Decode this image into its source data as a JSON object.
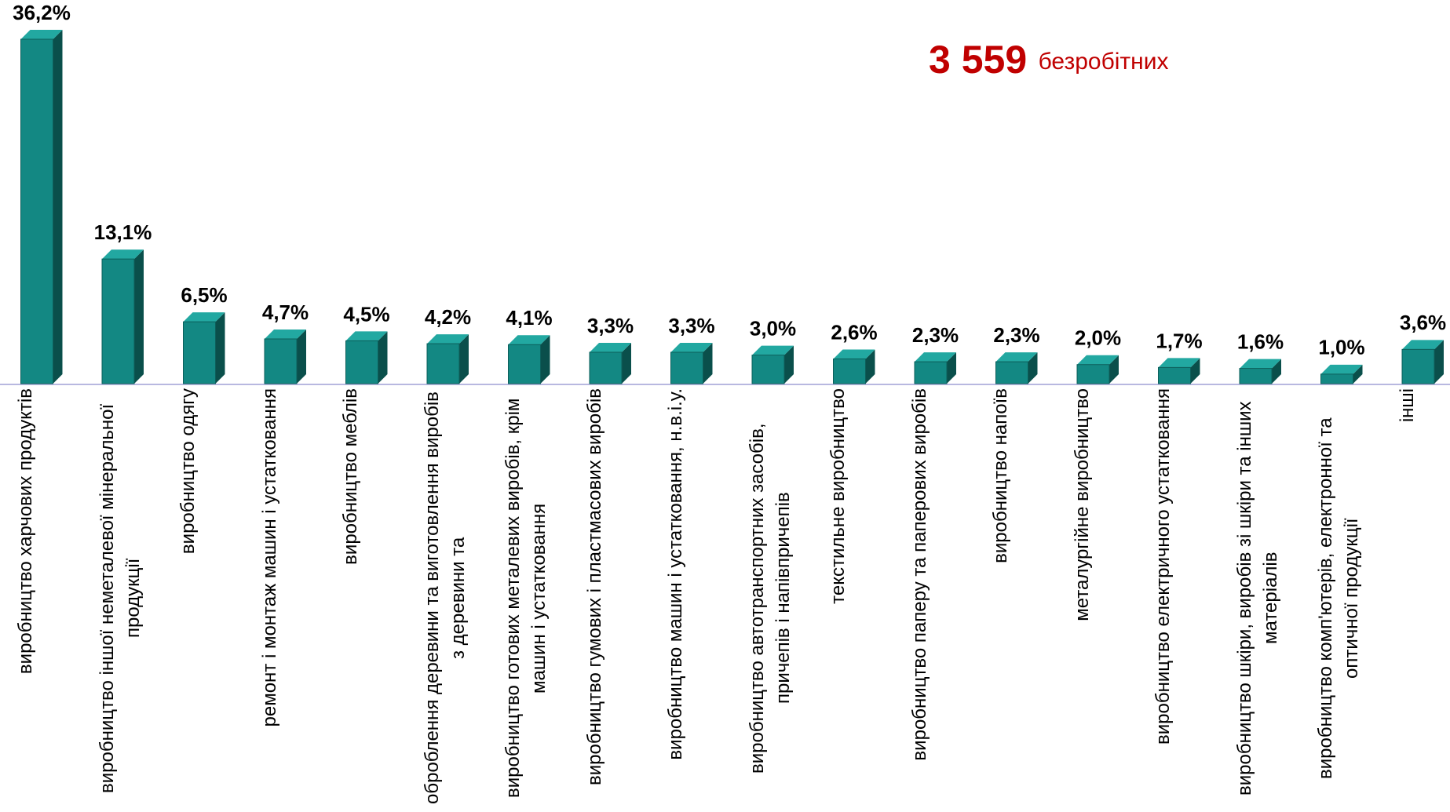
{
  "chart_data": {
    "type": "bar3d",
    "annotation": {
      "value": "3 559",
      "text": "безробітних"
    },
    "color": "#138883",
    "categories": [
      "виробництво харчових продуктів",
      "виробництво іншої неметалевої мінеральної продукції",
      "виробництво одягу",
      "ремонт і монтаж машин і устатковання",
      "виробництво меблів",
      "оброблення деревини та виготовлення виробів з деревини та",
      "виробництво готових металевих виробів, крім машин і устатковання",
      "виробництво гумових і пластмасових виробів",
      "виробництво машин і устатковання, н.в.і.у.",
      "виробництво автотранспортних засобів, причепів і напівпричепів",
      "текстильне виробництво",
      "виробництво паперу та паперових виробів",
      "виробництво напоїв",
      "металургійне виробництво",
      "виробництво електричного устатковання",
      "виробництво шкіри, виробів зі шкіри та інших матеріалів",
      "виробництво комп'ютерів, електронної та оптичної продукції",
      "інші"
    ],
    "values": [
      36.2,
      13.1,
      6.5,
      4.7,
      4.5,
      4.2,
      4.1,
      3.3,
      3.3,
      3.0,
      2.6,
      2.3,
      2.3,
      2.0,
      1.7,
      1.6,
      1.0,
      3.6
    ],
    "value_labels": [
      "36,2%",
      "13,1%",
      "6,5%",
      "4,7%",
      "4,5%",
      "4,2%",
      "4,1%",
      "3,3%",
      "3,3%",
      "3,0%",
      "2,6%",
      "2,3%",
      "2,3%",
      "2,0%",
      "1,7%",
      "1,6%",
      "1,0%",
      "3,6%"
    ]
  }
}
